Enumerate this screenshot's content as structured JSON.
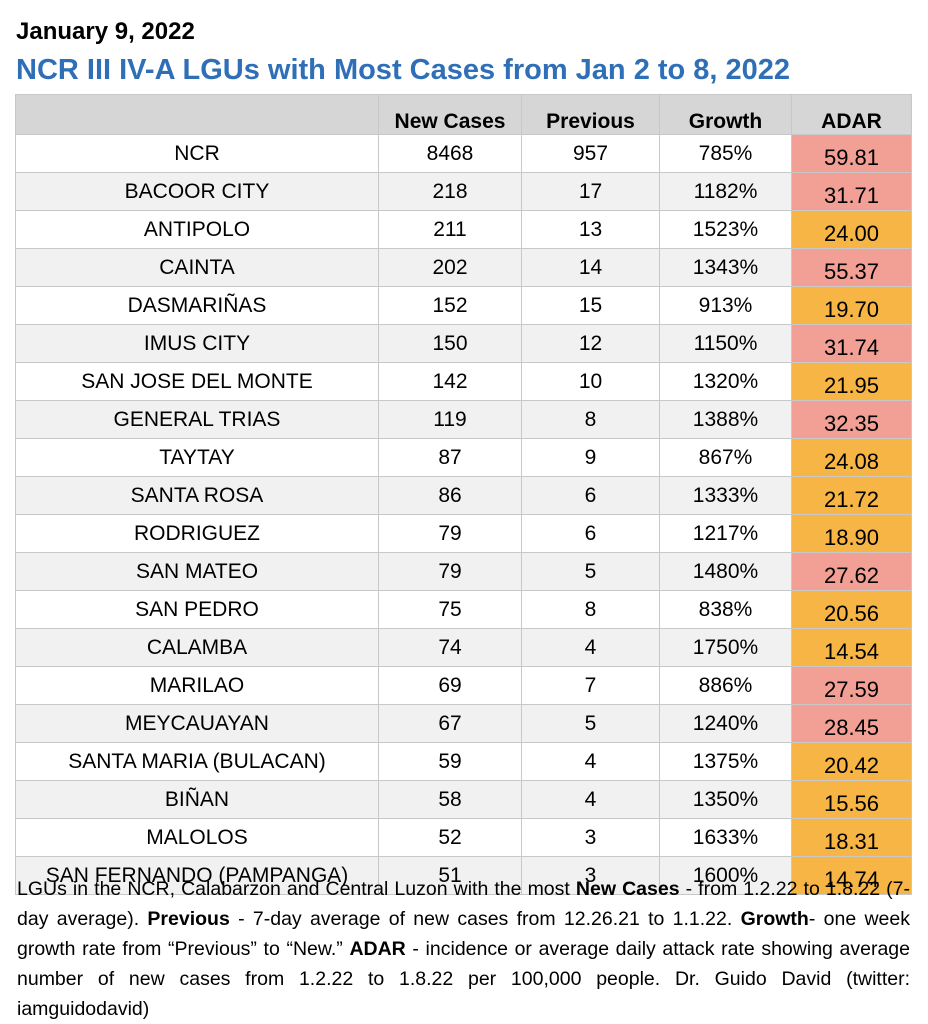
{
  "header": {
    "date": "January 9, 2022",
    "title": "NCR III IV-A LGUs with Most Cases from Jan 2 to 8, 2022"
  },
  "table": {
    "columns": [
      "",
      "New Cases",
      "Previous",
      "Growth",
      "ADAR"
    ],
    "rows": [
      {
        "lgu": "NCR",
        "new_cases": "8468",
        "previous": "957",
        "growth": "785%",
        "adar": "59.81",
        "adar_level": "pink"
      },
      {
        "lgu": "BACOOR CITY",
        "new_cases": "218",
        "previous": "17",
        "growth": "1182%",
        "adar": "31.71",
        "adar_level": "pink"
      },
      {
        "lgu": "ANTIPOLO",
        "new_cases": "211",
        "previous": "13",
        "growth": "1523%",
        "adar": "24.00",
        "adar_level": "orange"
      },
      {
        "lgu": "CAINTA",
        "new_cases": "202",
        "previous": "14",
        "growth": "1343%",
        "adar": "55.37",
        "adar_level": "pink"
      },
      {
        "lgu": "DASMARIÑAS",
        "new_cases": "152",
        "previous": "15",
        "growth": "913%",
        "adar": "19.70",
        "adar_level": "orange"
      },
      {
        "lgu": "IMUS CITY",
        "new_cases": "150",
        "previous": "12",
        "growth": "1150%",
        "adar": "31.74",
        "adar_level": "pink"
      },
      {
        "lgu": "SAN JOSE DEL MONTE",
        "new_cases": "142",
        "previous": "10",
        "growth": "1320%",
        "adar": "21.95",
        "adar_level": "orange"
      },
      {
        "lgu": "GENERAL TRIAS",
        "new_cases": "119",
        "previous": "8",
        "growth": "1388%",
        "adar": "32.35",
        "adar_level": "pink"
      },
      {
        "lgu": "TAYTAY",
        "new_cases": "87",
        "previous": "9",
        "growth": "867%",
        "adar": "24.08",
        "adar_level": "orange"
      },
      {
        "lgu": "SANTA ROSA",
        "new_cases": "86",
        "previous": "6",
        "growth": "1333%",
        "adar": "21.72",
        "adar_level": "orange"
      },
      {
        "lgu": "RODRIGUEZ",
        "new_cases": "79",
        "previous": "6",
        "growth": "1217%",
        "adar": "18.90",
        "adar_level": "orange"
      },
      {
        "lgu": "SAN MATEO",
        "new_cases": "79",
        "previous": "5",
        "growth": "1480%",
        "adar": "27.62",
        "adar_level": "pink"
      },
      {
        "lgu": "SAN PEDRO",
        "new_cases": "75",
        "previous": "8",
        "growth": "838%",
        "adar": "20.56",
        "adar_level": "orange"
      },
      {
        "lgu": "CALAMBA",
        "new_cases": "74",
        "previous": "4",
        "growth": "1750%",
        "adar": "14.54",
        "adar_level": "orange"
      },
      {
        "lgu": "MARILAO",
        "new_cases": "69",
        "previous": "7",
        "growth": "886%",
        "adar": "27.59",
        "adar_level": "pink"
      },
      {
        "lgu": "MEYCAUAYAN",
        "new_cases": "67",
        "previous": "5",
        "growth": "1240%",
        "adar": "28.45",
        "adar_level": "pink"
      },
      {
        "lgu": "SANTA MARIA (BULACAN)",
        "new_cases": "59",
        "previous": "4",
        "growth": "1375%",
        "adar": "20.42",
        "adar_level": "orange"
      },
      {
        "lgu": "BIÑAN",
        "new_cases": "58",
        "previous": "4",
        "growth": "1350%",
        "adar": "15.56",
        "adar_level": "orange"
      },
      {
        "lgu": "MALOLOS",
        "new_cases": "52",
        "previous": "3",
        "growth": "1633%",
        "adar": "18.31",
        "adar_level": "orange"
      },
      {
        "lgu": "SAN FERNANDO (PAMPANGA)",
        "new_cases": "51",
        "previous": "3",
        "growth": "1600%",
        "adar": "14.74",
        "adar_level": "orange"
      }
    ]
  },
  "colors": {
    "title_blue": "#2e6fb7",
    "header_gray": "#d6d6d6",
    "adar_pink": "#f2a095",
    "adar_orange": "#f6b544"
  },
  "note": {
    "p1": "LGUs in the NCR, Calabarzon and Central Luzon with the most ",
    "b1": "New Cases",
    "p2": " - from 1.2.22 to 1.8.22 (7-day average). ",
    "b2": "Previous",
    "p3": " - 7-day average of new cases from 12.26.21 to 1.1.22. ",
    "b3": "Growth",
    "p4": "- one week growth rate from “Previous” to “New.” ",
    "b4": "ADAR",
    "p5": " - incidence or average daily attack rate showing average number of new cases from 1.2.22 to 1.8.22 per 100,000 people. Dr. Guido David (twitter: iamguidodavid)"
  }
}
